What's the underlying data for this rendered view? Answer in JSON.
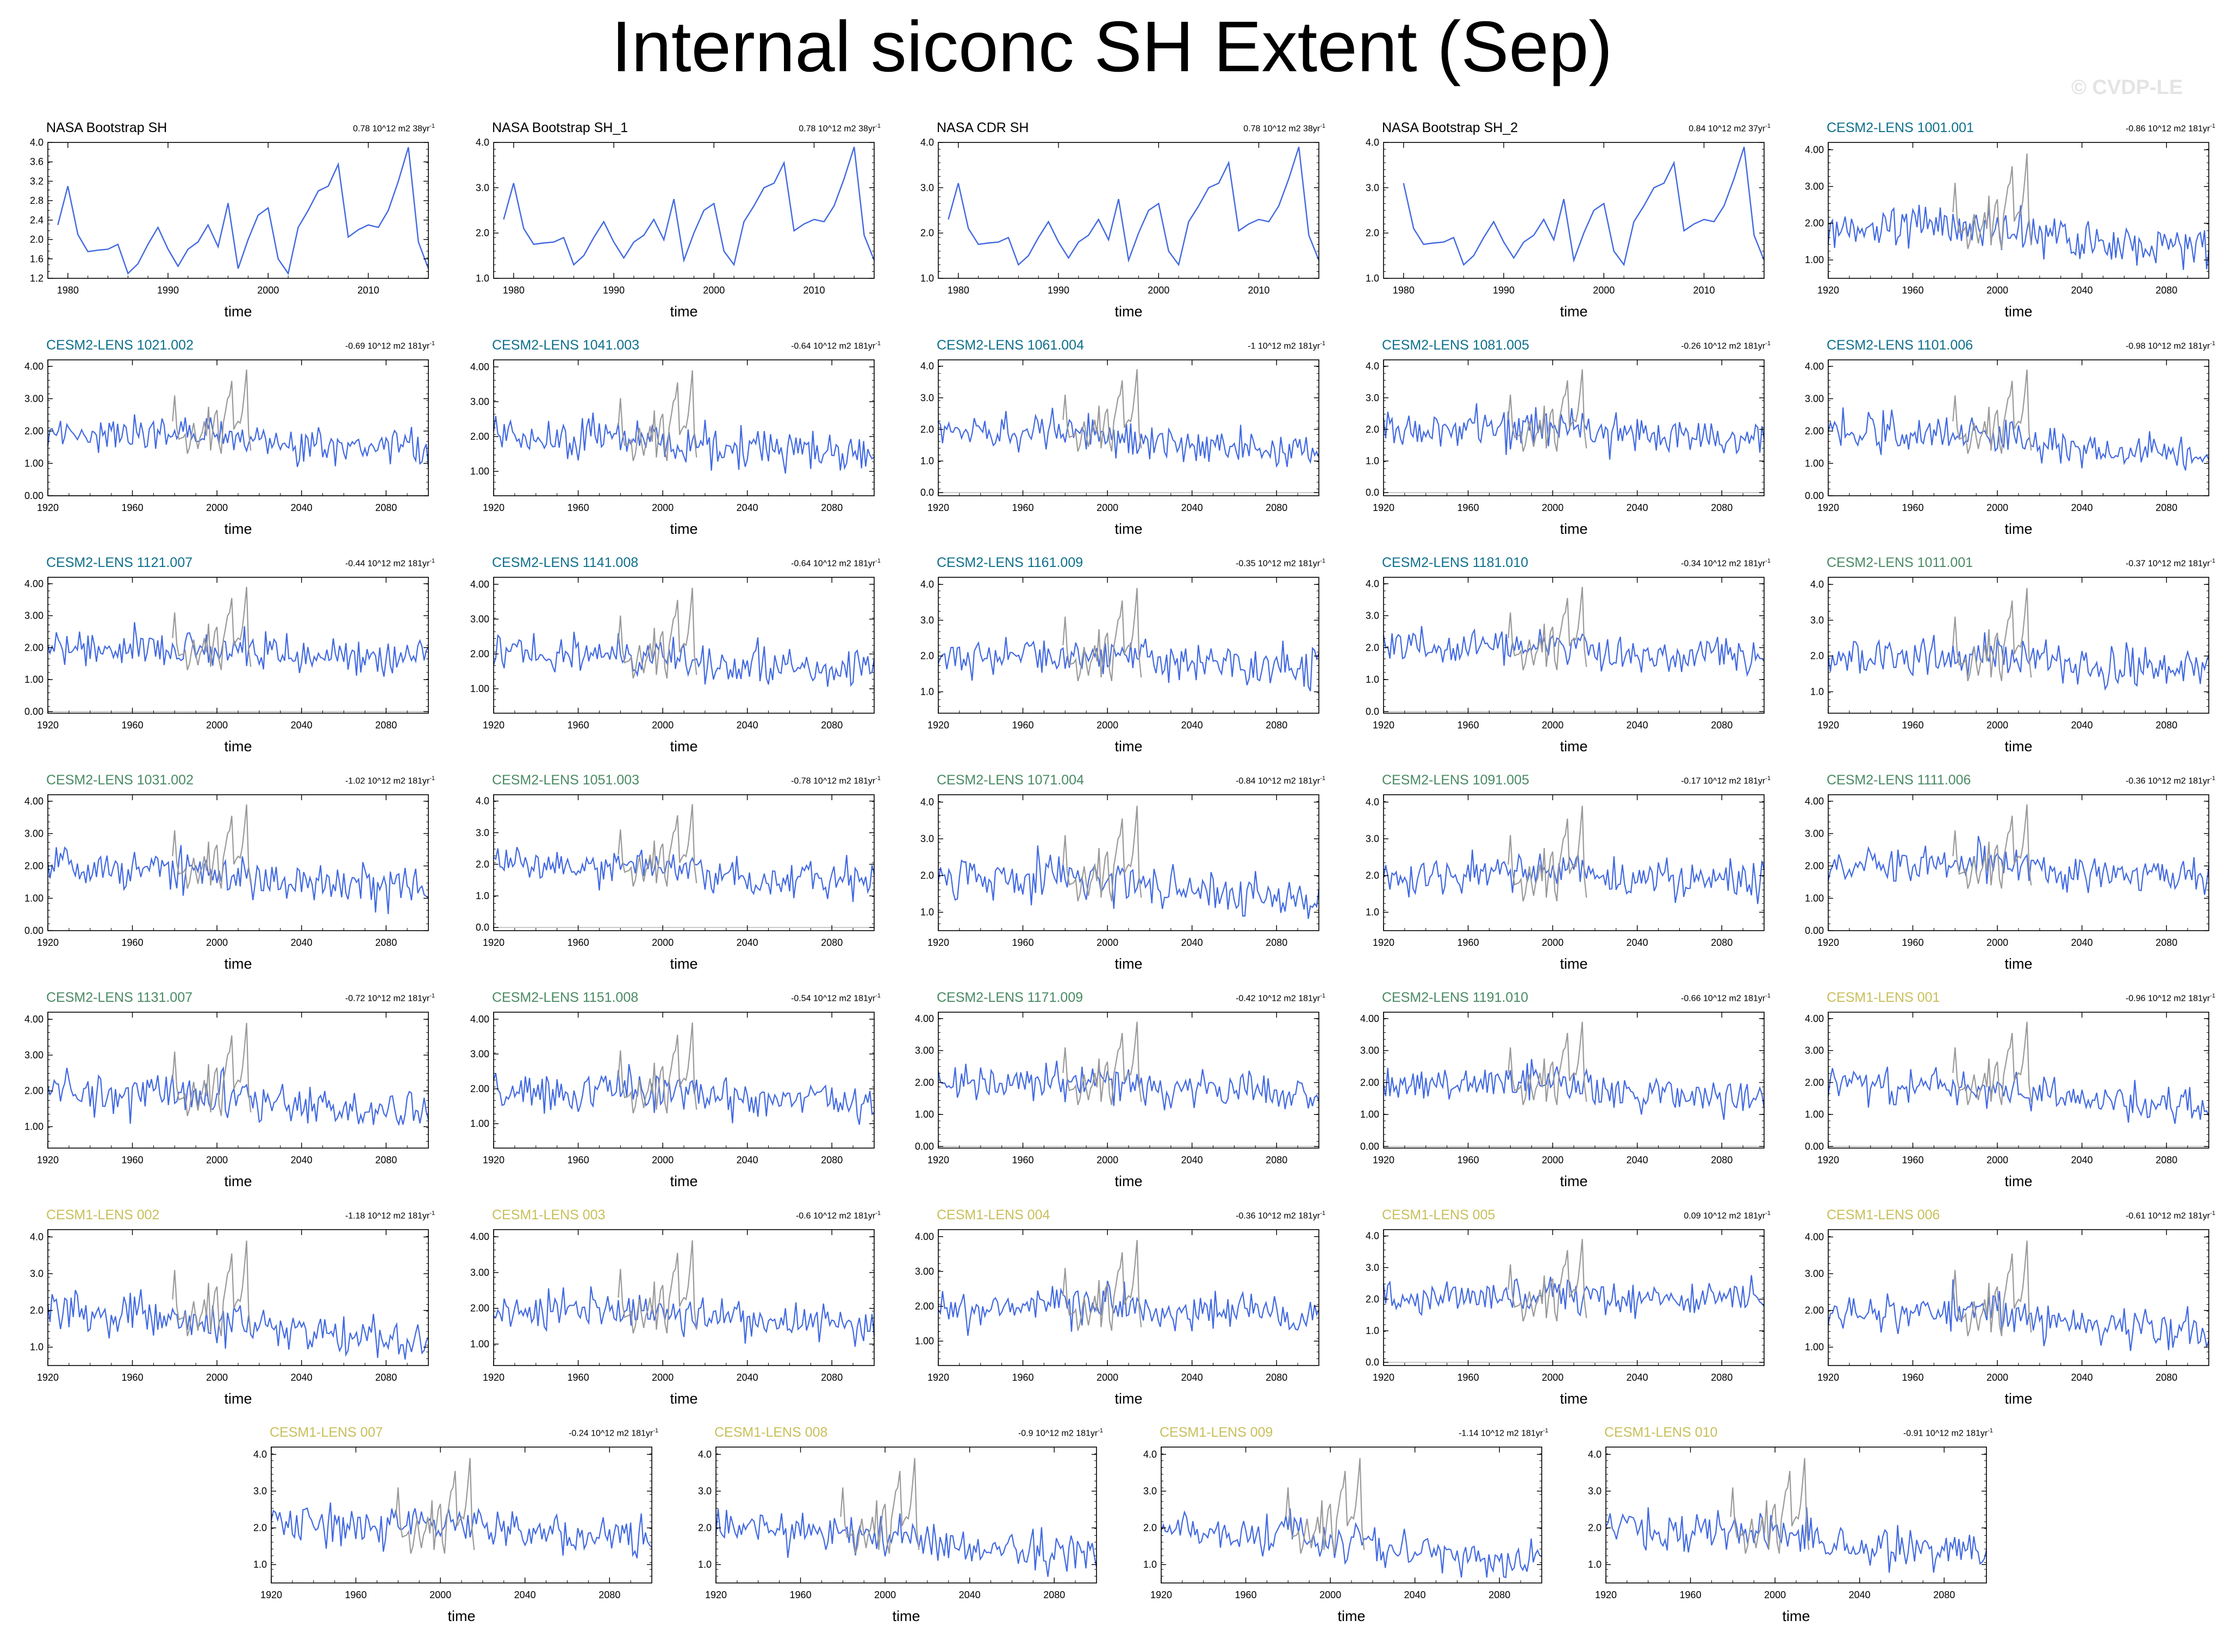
{
  "title": "Internal siconc SH Extent (Sep)",
  "copyright": "© CVDP-LE",
  "colors": {
    "obs_line": "#4169e1",
    "model_line": "#4169e1",
    "overlay_obs": "#9a9a9a",
    "zero_line": "#c8c8c8",
    "label_obs": "#000000",
    "label_cesm2_smbb": "#0e6f8c",
    "label_cesm2_cmip6": "#4a8a63",
    "label_cesm1": "#c8bf5a"
  },
  "chart_data": [
    {
      "type": "line",
      "title": "NASA Bootstrap SH",
      "trend": "0.78 10^12 m2 38yr",
      "group": "obs",
      "xlabel": "time",
      "xlim": [
        1978,
        2016
      ],
      "ylim": [
        1.2,
        4.0
      ],
      "yticks": [
        "1.2",
        "1.6",
        "2.0",
        "2.4",
        "2.8",
        "3.2",
        "3.6",
        "4.0"
      ],
      "xticks": [
        "1980",
        "1990",
        "2000",
        "2010"
      ],
      "show_zero": false
    },
    {
      "type": "line",
      "title": "NASA Bootstrap SH_1",
      "trend": "0.78 10^12 m2 38yr",
      "group": "obs",
      "xlabel": "time",
      "xlim": [
        1978,
        2016
      ],
      "ylim": [
        1.0,
        4.0
      ],
      "yticks": [
        "1.0",
        "2.0",
        "3.0",
        "4.0"
      ],
      "xticks": [
        "1980",
        "1990",
        "2000",
        "2010"
      ],
      "show_zero": false
    },
    {
      "type": "line",
      "title": "NASA CDR SH",
      "trend": "0.78 10^12 m2 38yr",
      "group": "obs",
      "xlabel": "time",
      "xlim": [
        1978,
        2016
      ],
      "ylim": [
        1.0,
        4.0
      ],
      "yticks": [
        "1.0",
        "2.0",
        "3.0",
        "4.0"
      ],
      "xticks": [
        "1980",
        "1990",
        "2000",
        "2010"
      ],
      "show_zero": false
    },
    {
      "type": "line",
      "title": "NASA Bootstrap SH_2",
      "trend": "0.84 10^12 m2 37yr",
      "group": "obs",
      "xlabel": "time",
      "xlim": [
        1978,
        2016
      ],
      "ylim": [
        1.0,
        4.0
      ],
      "yticks": [
        "1.0",
        "2.0",
        "3.0",
        "4.0"
      ],
      "xticks": [
        "1980",
        "1990",
        "2000",
        "2010"
      ],
      "show_zero": false
    },
    {
      "type": "line",
      "title": "CESM2-LENS 1001.001",
      "trend": "-0.86 10^12 m2 181yr",
      "group": "cesm2_smbb",
      "xlabel": "time",
      "xlim": [
        1920,
        2100
      ],
      "ylim": [
        0.5,
        4.2
      ],
      "yticks": [
        "1.00",
        "2.00",
        "3.00",
        "4.00"
      ],
      "xticks": [
        "1920",
        "1960",
        "2000",
        "2040",
        "2080"
      ],
      "show_zero": false
    },
    {
      "type": "line",
      "title": "CESM2-LENS 1021.002",
      "trend": "-0.69 10^12 m2 181yr",
      "group": "cesm2_smbb",
      "xlabel": "time",
      "xlim": [
        1920,
        2100
      ],
      "ylim": [
        0,
        4.2
      ],
      "yticks": [
        "0.00",
        "1.00",
        "2.00",
        "3.00",
        "4.00"
      ],
      "xticks": [
        "1920",
        "1960",
        "2000",
        "2040",
        "2080"
      ],
      "show_zero": true
    },
    {
      "type": "line",
      "title": "CESM2-LENS 1041.003",
      "trend": "-0.64 10^12 m2 181yr",
      "group": "cesm2_smbb",
      "xlabel": "time",
      "xlim": [
        1920,
        2100
      ],
      "ylim": [
        0.3,
        4.2
      ],
      "yticks": [
        "1.00",
        "2.00",
        "3.00",
        "4.00"
      ],
      "xticks": [
        "1920",
        "1960",
        "2000",
        "2040",
        "2080"
      ],
      "show_zero": false
    },
    {
      "type": "line",
      "title": "CESM2-LENS 1061.004",
      "trend": "-1 10^12 m2 181yr",
      "group": "cesm2_smbb",
      "xlabel": "time",
      "xlim": [
        1920,
        2100
      ],
      "ylim": [
        -0.1,
        4.2
      ],
      "yticks": [
        "0.0",
        "1.0",
        "2.0",
        "3.0",
        "4.0"
      ],
      "xticks": [
        "1920",
        "1960",
        "2000",
        "2040",
        "2080"
      ],
      "show_zero": true
    },
    {
      "type": "line",
      "title": "CESM2-LENS 1081.005",
      "trend": "-0.26 10^12 m2 181yr",
      "group": "cesm2_smbb",
      "xlabel": "time",
      "xlim": [
        1920,
        2100
      ],
      "ylim": [
        -0.1,
        4.2
      ],
      "yticks": [
        "0.0",
        "1.0",
        "2.0",
        "3.0",
        "4.0"
      ],
      "xticks": [
        "1920",
        "1960",
        "2000",
        "2040",
        "2080"
      ],
      "show_zero": true
    },
    {
      "type": "line",
      "title": "CESM2-LENS 1101.006",
      "trend": "-0.98 10^12 m2 181yr",
      "group": "cesm2_smbb",
      "xlabel": "time",
      "xlim": [
        1920,
        2100
      ],
      "ylim": [
        0,
        4.2
      ],
      "yticks": [
        "0.00",
        "1.00",
        "2.00",
        "3.00",
        "4.00"
      ],
      "xticks": [
        "1920",
        "1960",
        "2000",
        "2040",
        "2080"
      ],
      "show_zero": false
    },
    {
      "type": "line",
      "title": "CESM2-LENS 1121.007",
      "trend": "-0.44 10^12 m2 181yr",
      "group": "cesm2_smbb",
      "xlabel": "time",
      "xlim": [
        1920,
        2100
      ],
      "ylim": [
        -0.05,
        4.2
      ],
      "yticks": [
        "0.00",
        "1.00",
        "2.00",
        "3.00",
        "4.00"
      ],
      "xticks": [
        "1920",
        "1960",
        "2000",
        "2040",
        "2080"
      ],
      "show_zero": true
    },
    {
      "type": "line",
      "title": "CESM2-LENS 1141.008",
      "trend": "-0.64 10^12 m2 181yr",
      "group": "cesm2_smbb",
      "xlabel": "time",
      "xlim": [
        1920,
        2100
      ],
      "ylim": [
        0.3,
        4.2
      ],
      "yticks": [
        "1.00",
        "2.00",
        "3.00",
        "4.00"
      ],
      "xticks": [
        "1920",
        "1960",
        "2000",
        "2040",
        "2080"
      ],
      "show_zero": false
    },
    {
      "type": "line",
      "title": "CESM2-LENS 1161.009",
      "trend": "-0.35 10^12 m2 181yr",
      "group": "cesm2_smbb",
      "xlabel": "time",
      "xlim": [
        1920,
        2100
      ],
      "ylim": [
        0.4,
        4.2
      ],
      "yticks": [
        "1.0",
        "2.0",
        "3.0",
        "4.0"
      ],
      "xticks": [
        "1920",
        "1960",
        "2000",
        "2040",
        "2080"
      ],
      "show_zero": false
    },
    {
      "type": "line",
      "title": "CESM2-LENS 1181.010",
      "trend": "-0.34 10^12 m2 181yr",
      "group": "cesm2_smbb",
      "xlabel": "time",
      "xlim": [
        1920,
        2100
      ],
      "ylim": [
        -0.05,
        4.2
      ],
      "yticks": [
        "0.0",
        "1.0",
        "2.0",
        "3.0",
        "4.0"
      ],
      "xticks": [
        "1920",
        "1960",
        "2000",
        "2040",
        "2080"
      ],
      "show_zero": true
    },
    {
      "type": "line",
      "title": "CESM2-LENS 1011.001",
      "trend": "-0.37 10^12 m2 181yr",
      "group": "cesm2_cmip6",
      "xlabel": "time",
      "xlim": [
        1920,
        2100
      ],
      "ylim": [
        0.4,
        4.2
      ],
      "yticks": [
        "1.0",
        "2.0",
        "3.0",
        "4.0"
      ],
      "xticks": [
        "1920",
        "1960",
        "2000",
        "2040",
        "2080"
      ],
      "show_zero": false
    },
    {
      "type": "line",
      "title": "CESM2-LENS 1031.002",
      "trend": "-1.02 10^12 m2 181yr",
      "group": "cesm2_cmip6",
      "xlabel": "time",
      "xlim": [
        1920,
        2100
      ],
      "ylim": [
        0,
        4.2
      ],
      "yticks": [
        "0.00",
        "1.00",
        "2.00",
        "3.00",
        "4.00"
      ],
      "xticks": [
        "1920",
        "1960",
        "2000",
        "2040",
        "2080"
      ],
      "show_zero": false
    },
    {
      "type": "line",
      "title": "CESM2-LENS 1051.003",
      "trend": "-0.78 10^12 m2 181yr",
      "group": "cesm2_cmip6",
      "xlabel": "time",
      "xlim": [
        1920,
        2100
      ],
      "ylim": [
        -0.1,
        4.2
      ],
      "yticks": [
        "0.0",
        "1.0",
        "2.0",
        "3.0",
        "4.0"
      ],
      "xticks": [
        "1920",
        "1960",
        "2000",
        "2040",
        "2080"
      ],
      "show_zero": true
    },
    {
      "type": "line",
      "title": "CESM2-LENS 1071.004",
      "trend": "-0.84 10^12 m2 181yr",
      "group": "cesm2_cmip6",
      "xlabel": "time",
      "xlim": [
        1920,
        2100
      ],
      "ylim": [
        0.5,
        4.2
      ],
      "yticks": [
        "1.0",
        "2.0",
        "3.0",
        "4.0"
      ],
      "xticks": [
        "1920",
        "1960",
        "2000",
        "2040",
        "2080"
      ],
      "show_zero": false
    },
    {
      "type": "line",
      "title": "CESM2-LENS 1091.005",
      "trend": "-0.17 10^12 m2 181yr",
      "group": "cesm2_cmip6",
      "xlabel": "time",
      "xlim": [
        1920,
        2100
      ],
      "ylim": [
        0.5,
        4.2
      ],
      "yticks": [
        "1.0",
        "2.0",
        "3.0",
        "4.0"
      ],
      "xticks": [
        "1920",
        "1960",
        "2000",
        "2040",
        "2080"
      ],
      "show_zero": false
    },
    {
      "type": "line",
      "title": "CESM2-LENS 1111.006",
      "trend": "-0.36 10^12 m2 181yr",
      "group": "cesm2_cmip6",
      "xlabel": "time",
      "xlim": [
        1920,
        2100
      ],
      "ylim": [
        0,
        4.2
      ],
      "yticks": [
        "0.00",
        "1.00",
        "2.00",
        "3.00",
        "4.00"
      ],
      "xticks": [
        "1920",
        "1960",
        "2000",
        "2040",
        "2080"
      ],
      "show_zero": false
    },
    {
      "type": "line",
      "title": "CESM2-LENS 1131.007",
      "trend": "-0.72 10^12 m2 181yr",
      "group": "cesm2_cmip6",
      "xlabel": "time",
      "xlim": [
        1920,
        2100
      ],
      "ylim": [
        0.4,
        4.2
      ],
      "yticks": [
        "1.00",
        "2.00",
        "3.00",
        "4.00"
      ],
      "xticks": [
        "1920",
        "1960",
        "2000",
        "2040",
        "2080"
      ],
      "show_zero": false
    },
    {
      "type": "line",
      "title": "CESM2-LENS 1151.008",
      "trend": "-0.54 10^12 m2 181yr",
      "group": "cesm2_cmip6",
      "xlabel": "time",
      "xlim": [
        1920,
        2100
      ],
      "ylim": [
        0.3,
        4.2
      ],
      "yticks": [
        "1.00",
        "2.00",
        "3.00",
        "4.00"
      ],
      "xticks": [
        "1920",
        "1960",
        "2000",
        "2040",
        "2080"
      ],
      "show_zero": false
    },
    {
      "type": "line",
      "title": "CESM2-LENS 1171.009",
      "trend": "-0.42 10^12 m2 181yr",
      "group": "cesm2_cmip6",
      "xlabel": "time",
      "xlim": [
        1920,
        2100
      ],
      "ylim": [
        -0.05,
        4.2
      ],
      "yticks": [
        "0.00",
        "1.00",
        "2.00",
        "3.00",
        "4.00"
      ],
      "xticks": [
        "1920",
        "1960",
        "2000",
        "2040",
        "2080"
      ],
      "show_zero": true
    },
    {
      "type": "line",
      "title": "CESM2-LENS 1191.010",
      "trend": "-0.66 10^12 m2 181yr",
      "group": "cesm2_cmip6",
      "xlabel": "time",
      "xlim": [
        1920,
        2100
      ],
      "ylim": [
        -0.05,
        4.2
      ],
      "yticks": [
        "0.00",
        "1.00",
        "2.00",
        "3.00",
        "4.00"
      ],
      "xticks": [
        "1920",
        "1960",
        "2000",
        "2040",
        "2080"
      ],
      "show_zero": true
    },
    {
      "type": "line",
      "title": "CESM1-LENS 001",
      "trend": "-0.96 10^12 m2 181yr",
      "group": "cesm1",
      "xlabel": "time",
      "xlim": [
        1920,
        2100
      ],
      "ylim": [
        -0.05,
        4.2
      ],
      "yticks": [
        "0.00",
        "1.00",
        "2.00",
        "3.00",
        "4.00"
      ],
      "xticks": [
        "1920",
        "1960",
        "2000",
        "2040",
        "2080"
      ],
      "show_zero": true
    },
    {
      "type": "line",
      "title": "CESM1-LENS 002",
      "trend": "-1.18 10^12 m2 181yr",
      "group": "cesm1",
      "xlabel": "time",
      "xlim": [
        1920,
        2100
      ],
      "ylim": [
        0.5,
        4.2
      ],
      "yticks": [
        "1.0",
        "2.0",
        "3.0",
        "4.0"
      ],
      "xticks": [
        "1920",
        "1960",
        "2000",
        "2040",
        "2080"
      ],
      "show_zero": false
    },
    {
      "type": "line",
      "title": "CESM1-LENS 003",
      "trend": "-0.6 10^12 m2 181yr",
      "group": "cesm1",
      "xlabel": "time",
      "xlim": [
        1920,
        2100
      ],
      "ylim": [
        0.4,
        4.2
      ],
      "yticks": [
        "1.00",
        "2.00",
        "3.00",
        "4.00"
      ],
      "xticks": [
        "1920",
        "1960",
        "2000",
        "2040",
        "2080"
      ],
      "show_zero": false
    },
    {
      "type": "line",
      "title": "CESM1-LENS 004",
      "trend": "-0.36 10^12 m2 181yr",
      "group": "cesm1",
      "xlabel": "time",
      "xlim": [
        1920,
        2100
      ],
      "ylim": [
        0.3,
        4.2
      ],
      "yticks": [
        "1.00",
        "2.00",
        "3.00",
        "4.00"
      ],
      "xticks": [
        "1920",
        "1960",
        "2000",
        "2040",
        "2080"
      ],
      "show_zero": false
    },
    {
      "type": "line",
      "title": "CESM1-LENS 005",
      "trend": "0.09 10^12 m2 181yr",
      "group": "cesm1",
      "xlabel": "time",
      "xlim": [
        1920,
        2100
      ],
      "ylim": [
        -0.1,
        4.2
      ],
      "yticks": [
        "0.0",
        "1.0",
        "2.0",
        "3.0",
        "4.0"
      ],
      "xticks": [
        "1920",
        "1960",
        "2000",
        "2040",
        "2080"
      ],
      "show_zero": true
    },
    {
      "type": "line",
      "title": "CESM1-LENS 006",
      "trend": "-0.61 10^12 m2 181yr",
      "group": "cesm1",
      "xlabel": "time",
      "xlim": [
        1920,
        2100
      ],
      "ylim": [
        0.5,
        4.2
      ],
      "yticks": [
        "1.00",
        "2.00",
        "3.00",
        "4.00"
      ],
      "xticks": [
        "1920",
        "1960",
        "2000",
        "2040",
        "2080"
      ],
      "show_zero": false
    },
    {
      "type": "line",
      "title": "CESM1-LENS 007",
      "trend": "-0.24 10^12 m2 181yr",
      "group": "cesm1",
      "xlabel": "time",
      "xlim": [
        1920,
        2100
      ],
      "ylim": [
        0.5,
        4.2
      ],
      "yticks": [
        "1.0",
        "2.0",
        "3.0",
        "4.0"
      ],
      "xticks": [
        "1920",
        "1960",
        "2000",
        "2040",
        "2080"
      ],
      "show_zero": false
    },
    {
      "type": "line",
      "title": "CESM1-LENS 008",
      "trend": "-0.9 10^12 m2 181yr",
      "group": "cesm1",
      "xlabel": "time",
      "xlim": [
        1920,
        2100
      ],
      "ylim": [
        0.5,
        4.2
      ],
      "yticks": [
        "1.0",
        "2.0",
        "3.0",
        "4.0"
      ],
      "xticks": [
        "1920",
        "1960",
        "2000",
        "2040",
        "2080"
      ],
      "show_zero": false
    },
    {
      "type": "line",
      "title": "CESM1-LENS 009",
      "trend": "-1.14 10^12 m2 181yr",
      "group": "cesm1",
      "xlabel": "time",
      "xlim": [
        1920,
        2100
      ],
      "ylim": [
        0.5,
        4.2
      ],
      "yticks": [
        "1.0",
        "2.0",
        "3.0",
        "4.0"
      ],
      "xticks": [
        "1920",
        "1960",
        "2000",
        "2040",
        "2080"
      ],
      "show_zero": false
    },
    {
      "type": "line",
      "title": "CESM1-LENS 010",
      "trend": "-0.91 10^12 m2 181yr",
      "group": "cesm1",
      "xlabel": "time",
      "xlim": [
        1920,
        2100
      ],
      "ylim": [
        0.5,
        4.2
      ],
      "yticks": [
        "1.0",
        "2.0",
        "3.0",
        "4.0"
      ],
      "xticks": [
        "1920",
        "1960",
        "2000",
        "2040",
        "2080"
      ],
      "show_zero": false
    }
  ],
  "obs_series": {
    "name": "NASA Bootstrap SH",
    "x": [
      1979,
      1980,
      1981,
      1982,
      1983,
      1984,
      1985,
      1986,
      1987,
      1988,
      1989,
      1990,
      1991,
      1992,
      1993,
      1994,
      1995,
      1996,
      1997,
      1998,
      1999,
      2000,
      2001,
      2002,
      2003,
      2004,
      2005,
      2006,
      2007,
      2008,
      2009,
      2010,
      2011,
      2012,
      2013,
      2014,
      2015,
      2016
    ],
    "values": [
      2.3,
      3.1,
      2.1,
      1.75,
      1.78,
      1.8,
      1.9,
      1.3,
      1.5,
      1.9,
      2.25,
      1.8,
      1.45,
      1.8,
      1.95,
      2.3,
      1.85,
      2.75,
      1.4,
      2.0,
      2.5,
      2.65,
      1.6,
      1.3,
      2.25,
      2.6,
      3.0,
      3.1,
      3.55,
      2.05,
      2.2,
      2.3,
      2.25,
      2.6,
      3.2,
      3.9,
      1.95,
      1.4
    ]
  }
}
